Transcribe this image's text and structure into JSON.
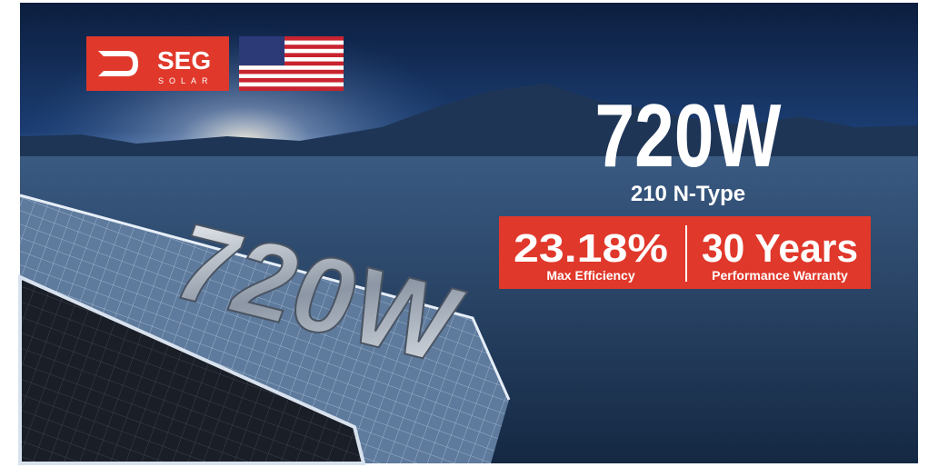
{
  "logo": {
    "name": "SEG",
    "sub": "SOLAR"
  },
  "headline": {
    "power": "720W",
    "type": "210 N-Type"
  },
  "stats": [
    {
      "value": "23.18%",
      "label": "Max Efficiency"
    },
    {
      "value": "30 Years",
      "label": "Performance Warranty"
    }
  ],
  "panel_text": "720W"
}
